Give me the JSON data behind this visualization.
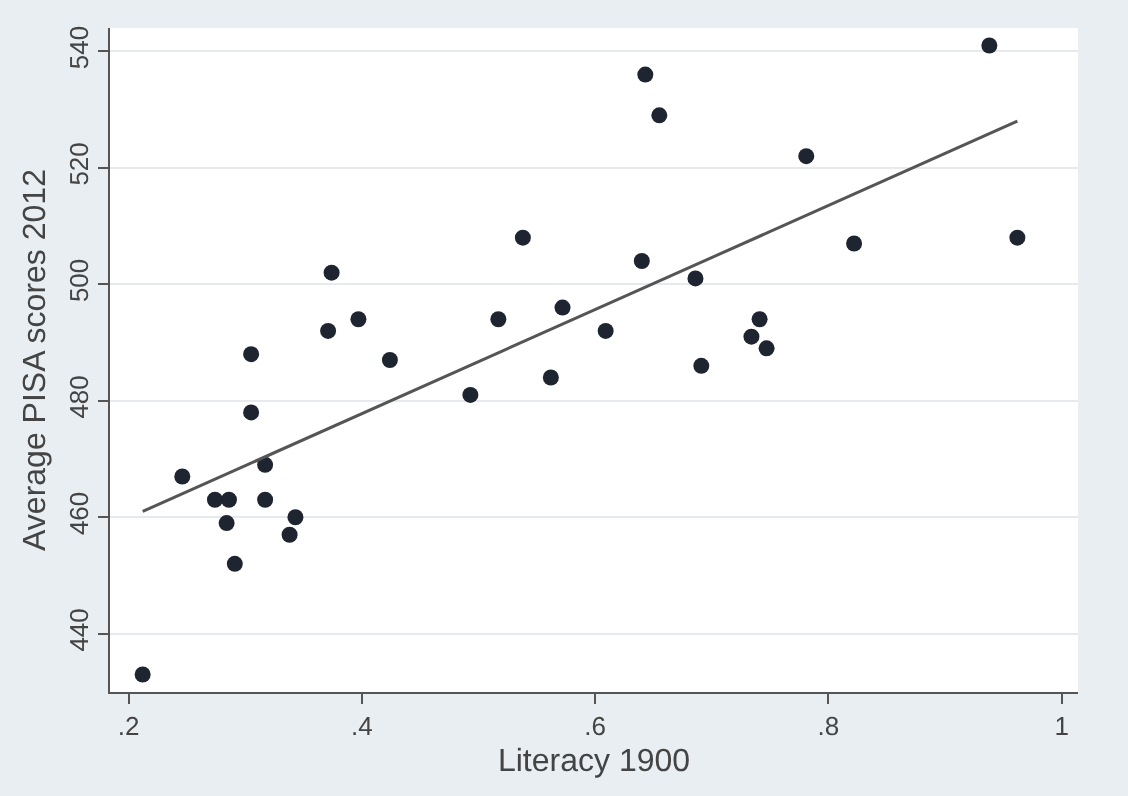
{
  "chart_data": {
    "type": "scatter",
    "xlabel": "Literacy 1900",
    "ylabel": "Average PISA scores 2012",
    "xlim": [
      0.184,
      1.014
    ],
    "ylim": [
      430,
      544
    ],
    "xticks": [
      {
        "value": 0.2,
        "label": ".2"
      },
      {
        "value": 0.4,
        "label": ".4"
      },
      {
        "value": 0.6,
        "label": ".6"
      },
      {
        "value": 0.8,
        "label": ".8"
      },
      1
    ],
    "yticks": [
      440,
      460,
      480,
      500,
      520,
      540
    ],
    "grid": "y",
    "marker": "circle",
    "series": [
      {
        "color": "#1e2430",
        "x": [
          0.212,
          0.246,
          0.274,
          0.286,
          0.284,
          0.291,
          0.305,
          0.317,
          0.317,
          0.338,
          0.343,
          0.305,
          0.371,
          0.374,
          0.397,
          0.424,
          0.493,
          0.517,
          0.538,
          0.562,
          0.572,
          0.609,
          0.643,
          0.655,
          0.64,
          0.686,
          0.691,
          0.741,
          0.734,
          0.747,
          0.781,
          0.822,
          0.938,
          0.962
        ],
        "values": [
          433,
          467,
          463,
          463,
          459,
          452,
          478,
          469,
          463,
          457,
          460,
          488,
          492,
          502,
          494,
          487,
          481,
          494,
          508,
          484,
          496,
          492,
          536,
          529,
          504,
          501,
          486,
          494,
          491,
          489,
          522,
          507,
          541,
          508
        ]
      },
      {
        "type": "line",
        "color": "#555555",
        "marker": "none",
        "x": [
          0.212,
          0.962
        ],
        "values": [
          461,
          528
        ]
      }
    ]
  }
}
